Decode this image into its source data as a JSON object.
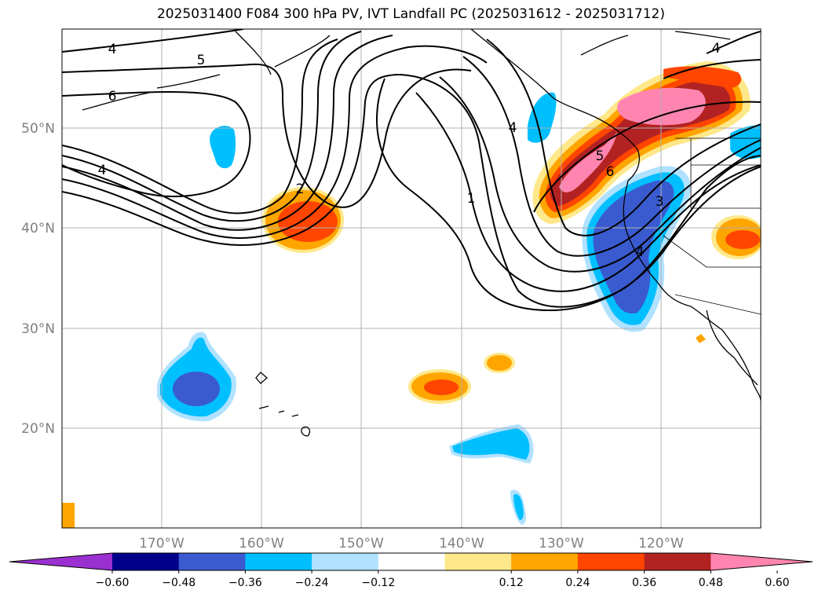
{
  "title": "2025031400 F084 300 hPa PV, IVT Landfall PC (2025031612 - 2025031712)",
  "lat_labels": [
    "50°N",
    "40°N",
    "30°N",
    "20°N"
  ],
  "lon_labels": [
    "170°W",
    "160°W",
    "150°W",
    "140°W",
    "130°W",
    "120°W"
  ],
  "colorbar": {
    "ticks": [
      "−0.60",
      "−0.48",
      "−0.36",
      "−0.24",
      "−0.12",
      "0.12",
      "0.24",
      "0.36",
      "0.48",
      "0.60"
    ],
    "colors": [
      "#9b30d0",
      "#00008b",
      "#3a5bcf",
      "#00bfff",
      "#b0e2ff",
      "#ffffff",
      "#ffe88a",
      "#ffa500",
      "#ff4500",
      "#b22222",
      "#ff85b0"
    ]
  },
  "contour_labels": [
    "4",
    "5",
    "6",
    "4",
    "2",
    "1",
    "4",
    "4",
    "5",
    "6",
    "3",
    "4"
  ],
  "map_colors": {
    "pink": "#ff85b0",
    "darkred": "#b22222",
    "orangered": "#ff4500",
    "orange": "#ffa500",
    "lightyellow": "#ffe88a",
    "blue": "#3a5bcf",
    "cyan": "#00bfff",
    "lightblue": "#b0e2ff"
  }
}
